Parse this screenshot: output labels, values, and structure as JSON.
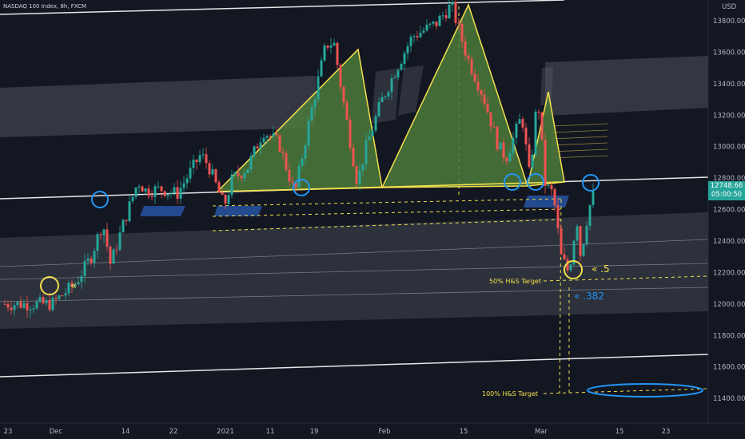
{
  "header": {
    "symbol_line": "NASDAQ 100 Index, 8h, FXCM"
  },
  "axis": {
    "currency": "USD"
  },
  "last_price": {
    "value": "12748.66",
    "countdown": "05:00:50"
  },
  "annotations": {
    "target_50": "50% H&S Target",
    "target_100": "100% H&S Target",
    "fib_5": "« .5",
    "fib_382": "« .382",
    "left_marker": "«"
  },
  "colors": {
    "background": "#131722",
    "up": "#26a69a",
    "down": "#ef5350",
    "pattern_fill": "#4c7a3a",
    "pattern_line": "#f4e04d",
    "circle_blue": "#2196f3",
    "circle_yellow": "#f4e04d"
  },
  "chart_data": {
    "type": "candlestick",
    "ylim": [
      11300,
      13950
    ],
    "y_ticks": [
      11400,
      11600,
      11800,
      12000,
      12200,
      12400,
      12600,
      12800,
      13000,
      13200,
      13400,
      13600,
      13800
    ],
    "y_tick_labels": [
      "11400.00",
      "11600.00",
      "11800.00",
      "12000.00",
      "12200.00",
      "12400.00",
      "12600.00",
      "12800.00",
      "13000.00",
      "13200.00",
      "13400.00",
      "13600.00",
      "13800.00"
    ],
    "x_tick_labels": [
      "23",
      "Dec",
      "14",
      "22",
      "2021",
      "11",
      "19",
      "Feb",
      "15",
      "Mar",
      "15",
      "23"
    ],
    "price_path": [
      [
        0,
        12000
      ],
      [
        6,
        12000
      ],
      [
        9,
        12130
      ],
      [
        11,
        12300
      ],
      [
        12.5,
        12520
      ],
      [
        13.5,
        12250
      ],
      [
        15,
        12490
      ],
      [
        17,
        12780
      ],
      [
        18,
        12720
      ],
      [
        20,
        12730
      ],
      [
        22,
        12700
      ],
      [
        25,
        12950
      ],
      [
        26,
        12880
      ],
      [
        28,
        12620
      ],
      [
        29,
        12790
      ],
      [
        31,
        12870
      ],
      [
        33,
        13100
      ],
      [
        35,
        13020
      ],
      [
        37,
        12700
      ],
      [
        39,
        13200
      ],
      [
        41,
        13650
      ],
      [
        42,
        13660
      ],
      [
        43,
        13350
      ],
      [
        45,
        12770
      ],
      [
        46,
        12980
      ],
      [
        48,
        13280
      ],
      [
        50,
        13500
      ],
      [
        52,
        13700
      ],
      [
        55,
        13780
      ],
      [
        57,
        13900
      ],
      [
        59,
        13570
      ],
      [
        61,
        13330
      ],
      [
        63,
        13000
      ],
      [
        64,
        12930
      ],
      [
        66,
        13200
      ],
      [
        67,
        12800
      ],
      [
        68,
        13330
      ],
      [
        69,
        12750
      ],
      [
        70,
        12700
      ],
      [
        70.5,
        12500
      ],
      [
        71,
        12300
      ],
      [
        72,
        12200
      ],
      [
        73,
        12550
      ],
      [
        73.5,
        12300
      ],
      [
        74.5,
        12600
      ],
      [
        75.5,
        12748.66
      ]
    ],
    "head_and_shoulders": {
      "neckline": 12740,
      "left_shoulder_peak": 13630,
      "head_peak": 13900,
      "right_shoulder_peak": 13350,
      "target_50": 12170,
      "target_100": 11440
    },
    "levels": [
      13950,
      12780,
      11680
    ],
    "dashed_levels": [
      12630,
      12580,
      12530,
      12180,
      11440
    ]
  }
}
